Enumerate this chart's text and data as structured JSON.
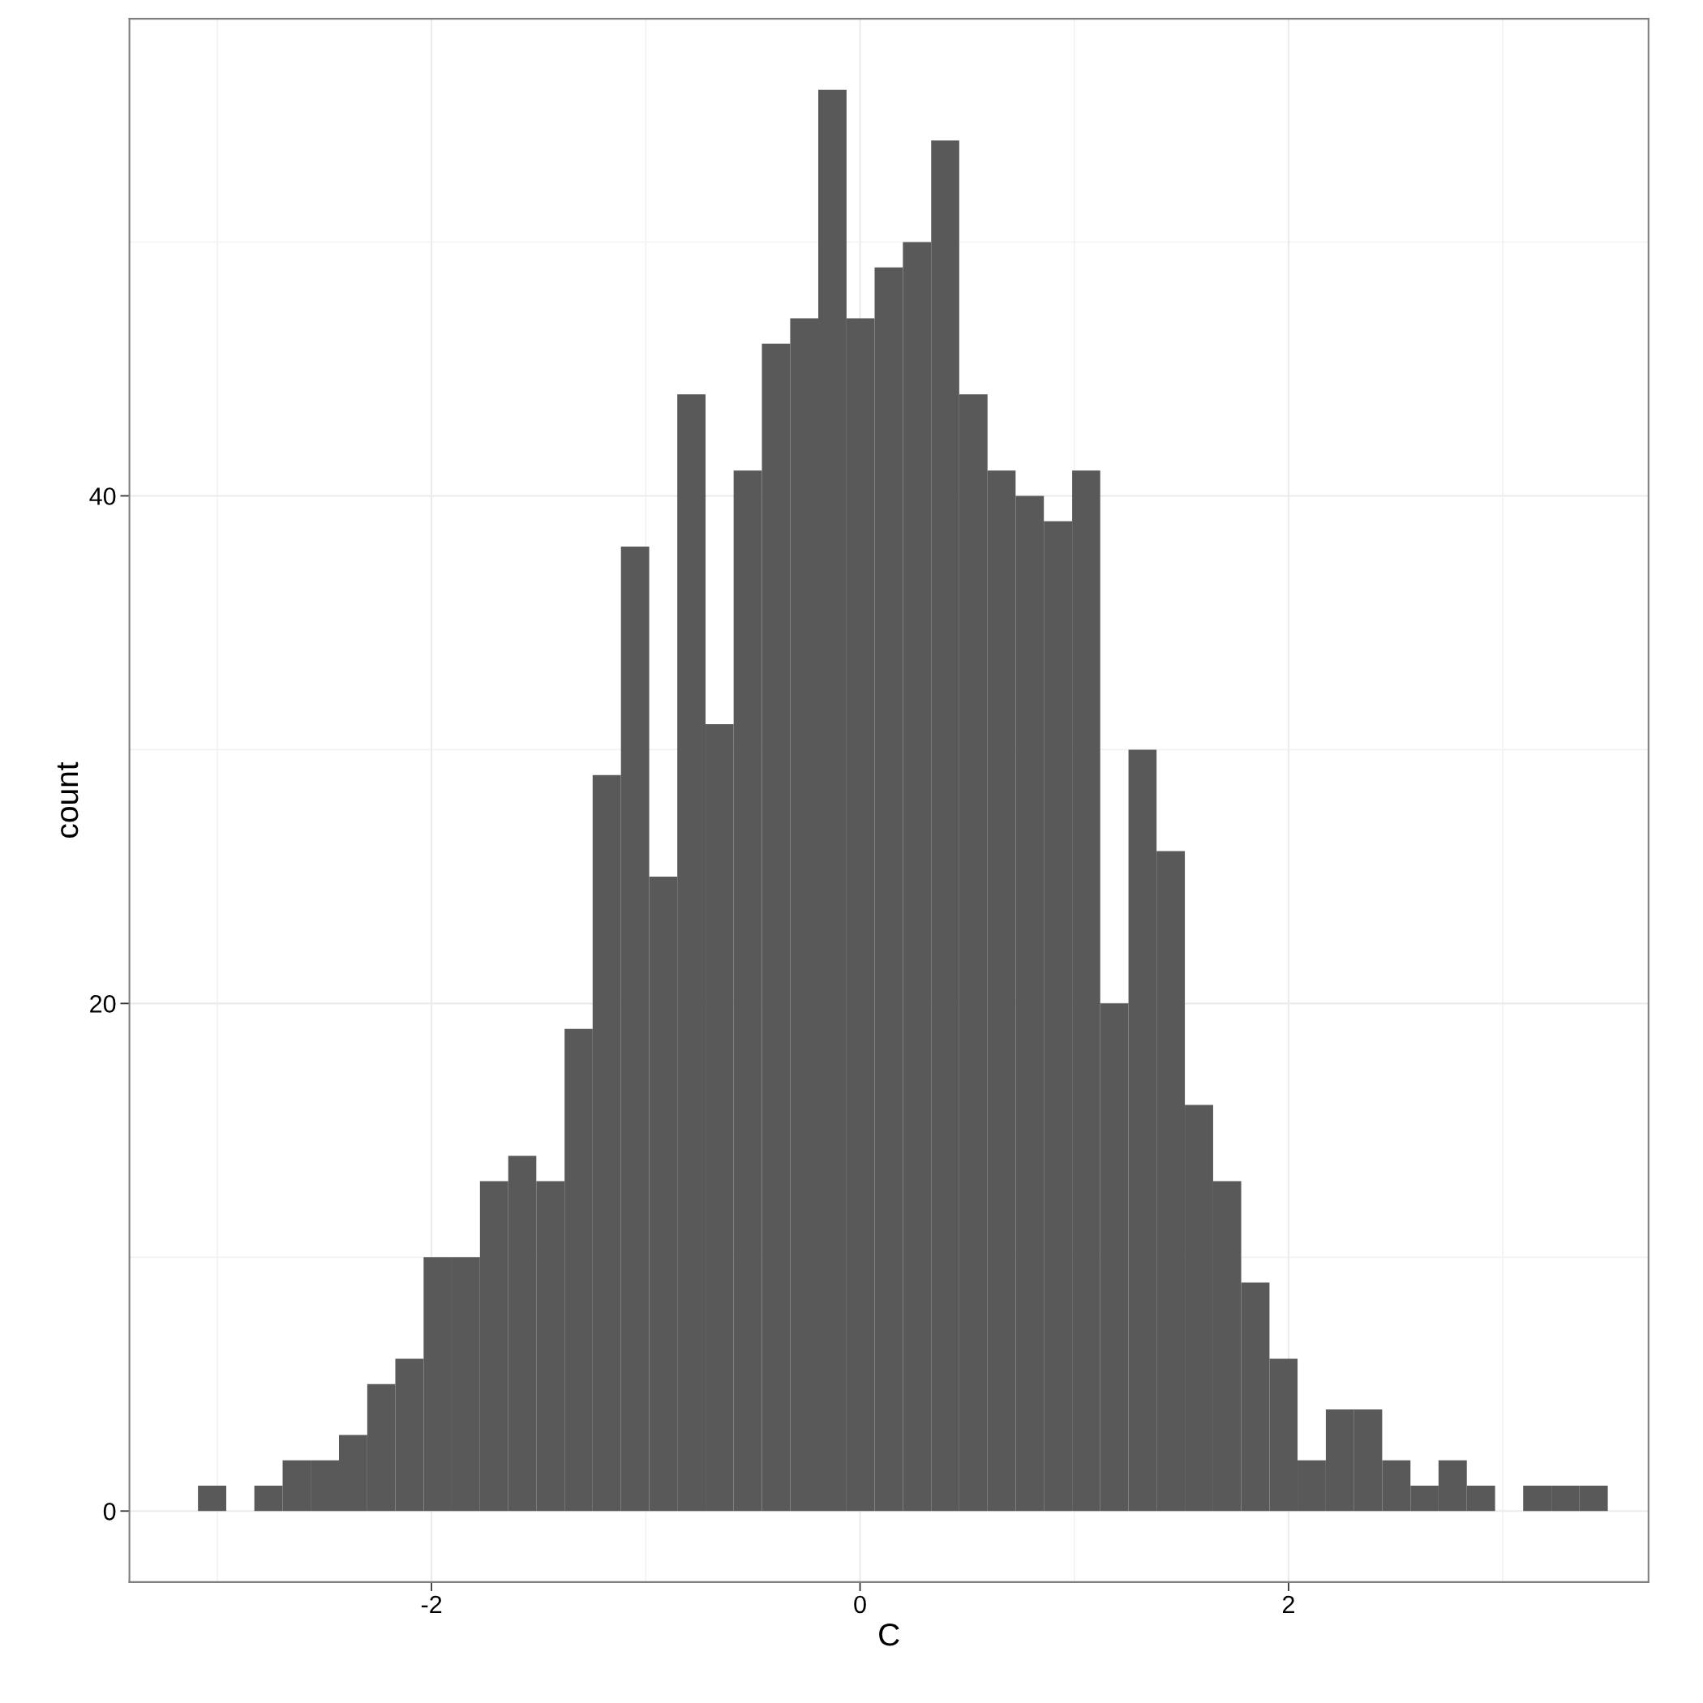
{
  "chart_data": {
    "type": "histogram",
    "xlabel": "C",
    "ylabel": "count",
    "color": "#595959",
    "bins": [
      -3.09,
      -2.958,
      -2.827,
      -2.695,
      -2.564,
      -2.432,
      -2.3,
      -2.169,
      -2.037,
      -1.906,
      -1.774,
      -1.642,
      -1.511,
      -1.379,
      -1.248,
      -1.116,
      -0.984,
      -0.853,
      -0.721,
      -0.59,
      -0.458,
      -0.326,
      -0.195,
      -0.063,
      0.068,
      0.2,
      0.332,
      0.463,
      0.595,
      0.726,
      0.858,
      0.99,
      1.121,
      1.253,
      1.384,
      1.516,
      1.648,
      1.779,
      1.911,
      2.042,
      2.174,
      2.306,
      2.437,
      2.569,
      2.7,
      2.832,
      2.964,
      3.095,
      3.227,
      3.358,
      3.49
    ],
    "values": [
      1,
      0,
      1,
      2,
      2,
      3,
      5,
      6,
      10,
      10,
      13,
      14,
      13,
      19,
      29,
      38,
      25,
      44,
      31,
      41,
      46,
      47,
      56,
      47,
      49,
      50,
      54,
      44,
      41,
      40,
      39,
      41,
      20,
      30,
      26,
      16,
      13,
      9,
      6,
      2,
      4,
      4,
      2,
      1,
      2,
      1,
      0,
      1,
      1,
      1
    ],
    "xlim": [
      -3.41,
      3.68
    ],
    "ylim": [
      -2.8,
      58.8
    ],
    "xticks": [
      -2,
      0,
      2
    ],
    "yticks": [
      0,
      20,
      40
    ],
    "grid": true
  }
}
